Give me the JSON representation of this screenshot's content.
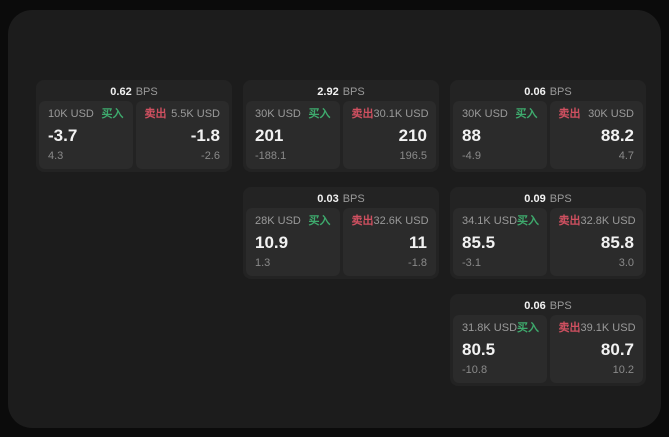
{
  "colors": {
    "page_bg": "#0b0b0b",
    "panel_bg": "#1c1c1c",
    "card_bg": "#232323",
    "tile_bg": "#2b2b2b",
    "text_primary": "#f2f2f2",
    "text_muted": "#9a9a9a",
    "delta_gray": "#8a8a8a",
    "buy_green": "#3eaa6d",
    "sell_red": "#cf5060"
  },
  "labels": {
    "bps_unit": "BPS",
    "buy": "买入",
    "sell": "卖出"
  },
  "cards": [
    {
      "bps": "0.62",
      "buy": {
        "size": "10K USD",
        "price": "-3.7",
        "delta": "4.3"
      },
      "sell": {
        "size": "5.5K USD",
        "price": "-1.8",
        "delta": "-2.6"
      }
    },
    {
      "bps": "2.92",
      "buy": {
        "size": "30K USD",
        "price": "201",
        "delta": "-188.1"
      },
      "sell": {
        "size": "30.1K USD",
        "price": "210",
        "delta": "196.5"
      }
    },
    {
      "bps": "0.06",
      "buy": {
        "size": "30K USD",
        "price": "88",
        "delta": "-4.9"
      },
      "sell": {
        "size": "30K USD",
        "price": "88.2",
        "delta": "4.7"
      }
    },
    {
      "bps": "0.03",
      "buy": {
        "size": "28K USD",
        "price": "10.9",
        "delta": "1.3"
      },
      "sell": {
        "size": "32.6K USD",
        "price": "11",
        "delta": "-1.8"
      }
    },
    {
      "bps": "0.09",
      "buy": {
        "size": "34.1K USD",
        "price": "85.5",
        "delta": "-3.1"
      },
      "sell": {
        "size": "32.8K USD",
        "price": "85.8",
        "delta": "3.0"
      }
    },
    {
      "bps": "0.06",
      "buy": {
        "size": "31.8K USD",
        "price": "80.5",
        "delta": "-10.8"
      },
      "sell": {
        "size": "39.1K USD",
        "price": "80.7",
        "delta": "10.2"
      }
    }
  ]
}
